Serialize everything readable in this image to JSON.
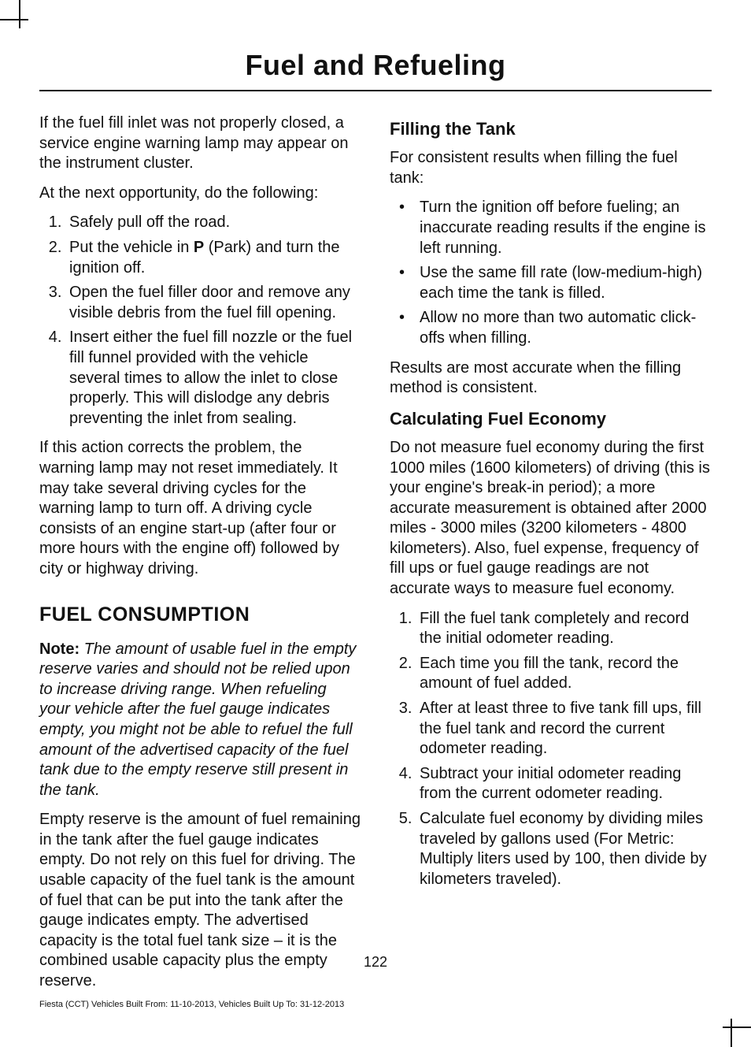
{
  "page_title": "Fuel and Refueling",
  "page_number": "122",
  "footer": "Fiesta (CCT) Vehicles Built From: 11-10-2013, Vehicles Built Up To: 31-12-2013",
  "left": {
    "p1": "If the fuel fill inlet was not properly closed, a service engine warning lamp may appear on the instrument cluster.",
    "p2": "At the next opportunity, do the following:",
    "steps": [
      "Safely pull off the road.",
      "Put the vehicle in P (Park) and turn the ignition off.",
      "Open the fuel filler door and remove any visible debris from the fuel fill opening.",
      "Insert either the fuel fill nozzle or the fuel fill funnel provided with the vehicle several times to allow the inlet to close properly. This will dislodge any debris preventing the inlet from sealing."
    ],
    "step2_prefix": "Put the vehicle in ",
    "step2_bold": "P",
    "step2_suffix": " (Park) and turn the ignition off.",
    "p3": "If this action corrects the problem, the warning lamp may not reset immediately. It may take several driving cycles for the warning lamp to turn off. A driving cycle consists of an engine start-up (after four or more hours with the engine off) followed by city or highway driving.",
    "h2": "FUEL CONSUMPTION",
    "note_label": "Note:",
    "note_body": " The amount of usable fuel in the empty reserve varies and should not be relied upon to increase driving range. When refueling your vehicle after the fuel gauge indicates empty, you might not be able to refuel the full amount of the advertised capacity of the fuel tank due to the empty reserve still present in the tank.",
    "p4": "Empty reserve is the amount of fuel remaining in the tank after the fuel gauge indicates empty. Do not rely on this fuel for driving. The usable capacity of the fuel tank is the amount of fuel that can be put into the tank after the gauge indicates empty. The advertised capacity is the total fuel tank size – it is the combined usable capacity plus the empty reserve."
  },
  "right": {
    "h3a": "Filling the Tank",
    "p1": "For consistent results when filling the fuel tank:",
    "bullets": [
      "Turn the ignition off before fueling; an inaccurate reading results if the engine is left running.",
      "Use the same fill rate (low-medium-high) each time the tank is filled.",
      "Allow no more than two automatic click-offs when filling."
    ],
    "p2": "Results are most accurate when the filling method is consistent.",
    "h3b": "Calculating Fuel Economy",
    "p3": "Do not measure fuel economy during the first 1000 miles (1600 kilometers) of driving (this is your engine's break-in period); a more accurate measurement is obtained after 2000 miles - 3000 miles (3200 kilometers - 4800 kilometers). Also, fuel expense, frequency of fill ups or fuel gauge readings are not accurate ways to measure fuel economy.",
    "steps": [
      "Fill the fuel tank completely and record the initial odometer reading.",
      "Each time you fill the tank, record the amount of fuel added.",
      "After at least three to five tank fill ups, fill the fuel tank and record the current odometer reading.",
      "Subtract your initial odometer reading from the current odometer reading.",
      "Calculate fuel economy by dividing miles traveled by gallons used (For Metric: Multiply liters used by 100, then divide by kilometers traveled)."
    ]
  }
}
